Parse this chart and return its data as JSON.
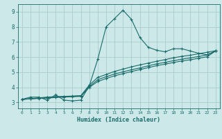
{
  "xlabel": "Humidex (Indice chaleur)",
  "background_color": "#cce8e8",
  "grid_color": "#aacccc",
  "line_color": "#1a6b6b",
  "xlim": [
    -0.5,
    23.5
  ],
  "ylim": [
    2.6,
    9.5
  ],
  "xticks": [
    0,
    1,
    2,
    3,
    4,
    5,
    6,
    7,
    8,
    9,
    10,
    11,
    12,
    13,
    14,
    15,
    16,
    17,
    18,
    19,
    20,
    21,
    22,
    23
  ],
  "yticks": [
    3,
    4,
    5,
    6,
    7,
    8,
    9
  ],
  "line1_x": [
    0,
    1,
    2,
    3,
    4,
    5,
    6,
    7,
    8,
    9,
    10,
    11,
    12,
    13,
    14,
    15,
    16,
    17,
    18,
    19,
    20,
    21,
    22,
    23
  ],
  "line1_y": [
    3.2,
    3.35,
    3.35,
    3.15,
    3.5,
    3.15,
    3.1,
    3.15,
    4.1,
    5.85,
    8.0,
    8.55,
    9.1,
    8.5,
    7.3,
    6.65,
    6.45,
    6.35,
    6.55,
    6.55,
    6.4,
    6.25,
    6.15,
    6.4
  ],
  "line2_x": [
    0,
    1,
    2,
    3,
    4,
    5,
    6,
    7,
    8,
    9,
    10,
    11,
    12,
    13,
    14,
    15,
    16,
    17,
    18,
    19,
    20,
    21,
    22,
    23
  ],
  "line2_y": [
    3.2,
    3.25,
    3.3,
    3.35,
    3.38,
    3.4,
    3.42,
    3.45,
    4.15,
    4.65,
    4.85,
    5.05,
    5.2,
    5.35,
    5.48,
    5.6,
    5.72,
    5.83,
    5.95,
    6.05,
    6.12,
    6.22,
    6.32,
    6.42
  ],
  "line3_x": [
    0,
    1,
    2,
    3,
    4,
    5,
    6,
    7,
    8,
    9,
    10,
    11,
    12,
    13,
    14,
    15,
    16,
    17,
    18,
    19,
    20,
    21,
    22,
    23
  ],
  "line3_y": [
    3.2,
    3.24,
    3.28,
    3.32,
    3.36,
    3.38,
    3.4,
    3.42,
    4.05,
    4.5,
    4.7,
    4.88,
    5.02,
    5.16,
    5.28,
    5.42,
    5.55,
    5.65,
    5.76,
    5.86,
    5.94,
    6.04,
    6.14,
    6.4
  ],
  "line4_x": [
    0,
    1,
    2,
    3,
    4,
    5,
    6,
    7,
    8,
    9,
    10,
    11,
    12,
    13,
    14,
    15,
    16,
    17,
    18,
    19,
    20,
    21,
    22,
    23
  ],
  "line4_y": [
    3.2,
    3.23,
    3.26,
    3.29,
    3.32,
    3.35,
    3.37,
    3.4,
    4.0,
    4.38,
    4.58,
    4.76,
    4.9,
    5.04,
    5.17,
    5.3,
    5.43,
    5.53,
    5.64,
    5.74,
    5.82,
    5.92,
    6.02,
    6.4
  ]
}
